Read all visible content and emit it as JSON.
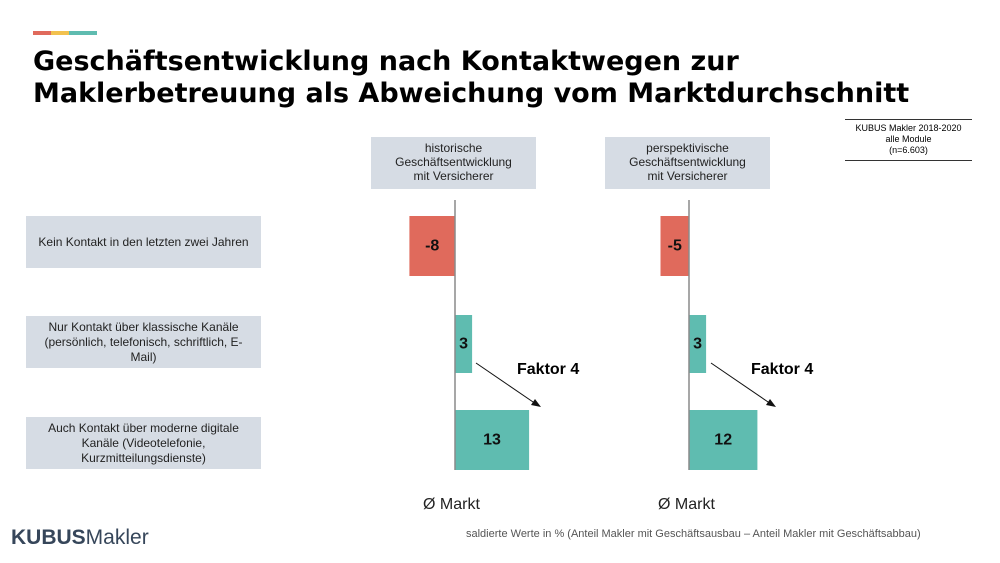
{
  "title": {
    "line1": "Geschäftsentwicklung nach Kontaktwegen zur",
    "line2": "Maklerbetreuung als Abweichung vom Marktdurchschnitt"
  },
  "source": {
    "line1": "KUBUS Makler 2018-2020",
    "line2": "alle Module",
    "line3": "(n=6.603)"
  },
  "columns": [
    {
      "line1": "historische",
      "line2": "Geschäftsentwicklung",
      "line3": "mit Versicherer"
    },
    {
      "line1": "perspektivische",
      "line2": "Geschäftsentwicklung",
      "line3": "mit Versicherer"
    }
  ],
  "rows": [
    "Kein Kontakt in den letzten zwei Jahren",
    "Nur Kontakt über klassische Kanäle (persönlich, telefonisch, schriftlich, E-Mail)",
    "Auch Kontakt über moderne digitale Kanäle (Videotelefonie, Kurzmitteilungsdienste)"
  ],
  "annotations": {
    "faktor_left": "Faktor 4",
    "faktor_right": "Faktor 4"
  },
  "market_labels": {
    "left": "Ø Markt",
    "right": "Ø Markt"
  },
  "logo": {
    "bold": "KUBUS",
    "light": "Makler"
  },
  "footnote": "saldierte Werte in % (Anteil Makler mit Geschäftsausbau – Anteil Makler mit Geschäftsabbau)",
  "colors": {
    "negative": "#e06a5c",
    "positive": "#5fbcb0",
    "header_bg": "#d6dce4",
    "accent_yellow": "#f2c14e"
  },
  "chart_data": {
    "type": "bar",
    "orientation": "horizontal",
    "categories": [
      "Kein Kontakt in den letzten zwei Jahren",
      "Nur Kontakt über klassische Kanäle (persönlich, telefonisch, schriftlich, E-Mail)",
      "Auch Kontakt über moderne digitale Kanäle (Videotelefonie, Kurzmitteilungsdienste)"
    ],
    "series": [
      {
        "name": "historische Geschäftsentwicklung mit Versicherer",
        "values": [
          -8,
          3,
          13
        ]
      },
      {
        "name": "perspektivische Geschäftsentwicklung mit Versicherer",
        "values": [
          -5,
          3,
          12
        ]
      }
    ],
    "baseline_label": "Ø Markt"
  }
}
